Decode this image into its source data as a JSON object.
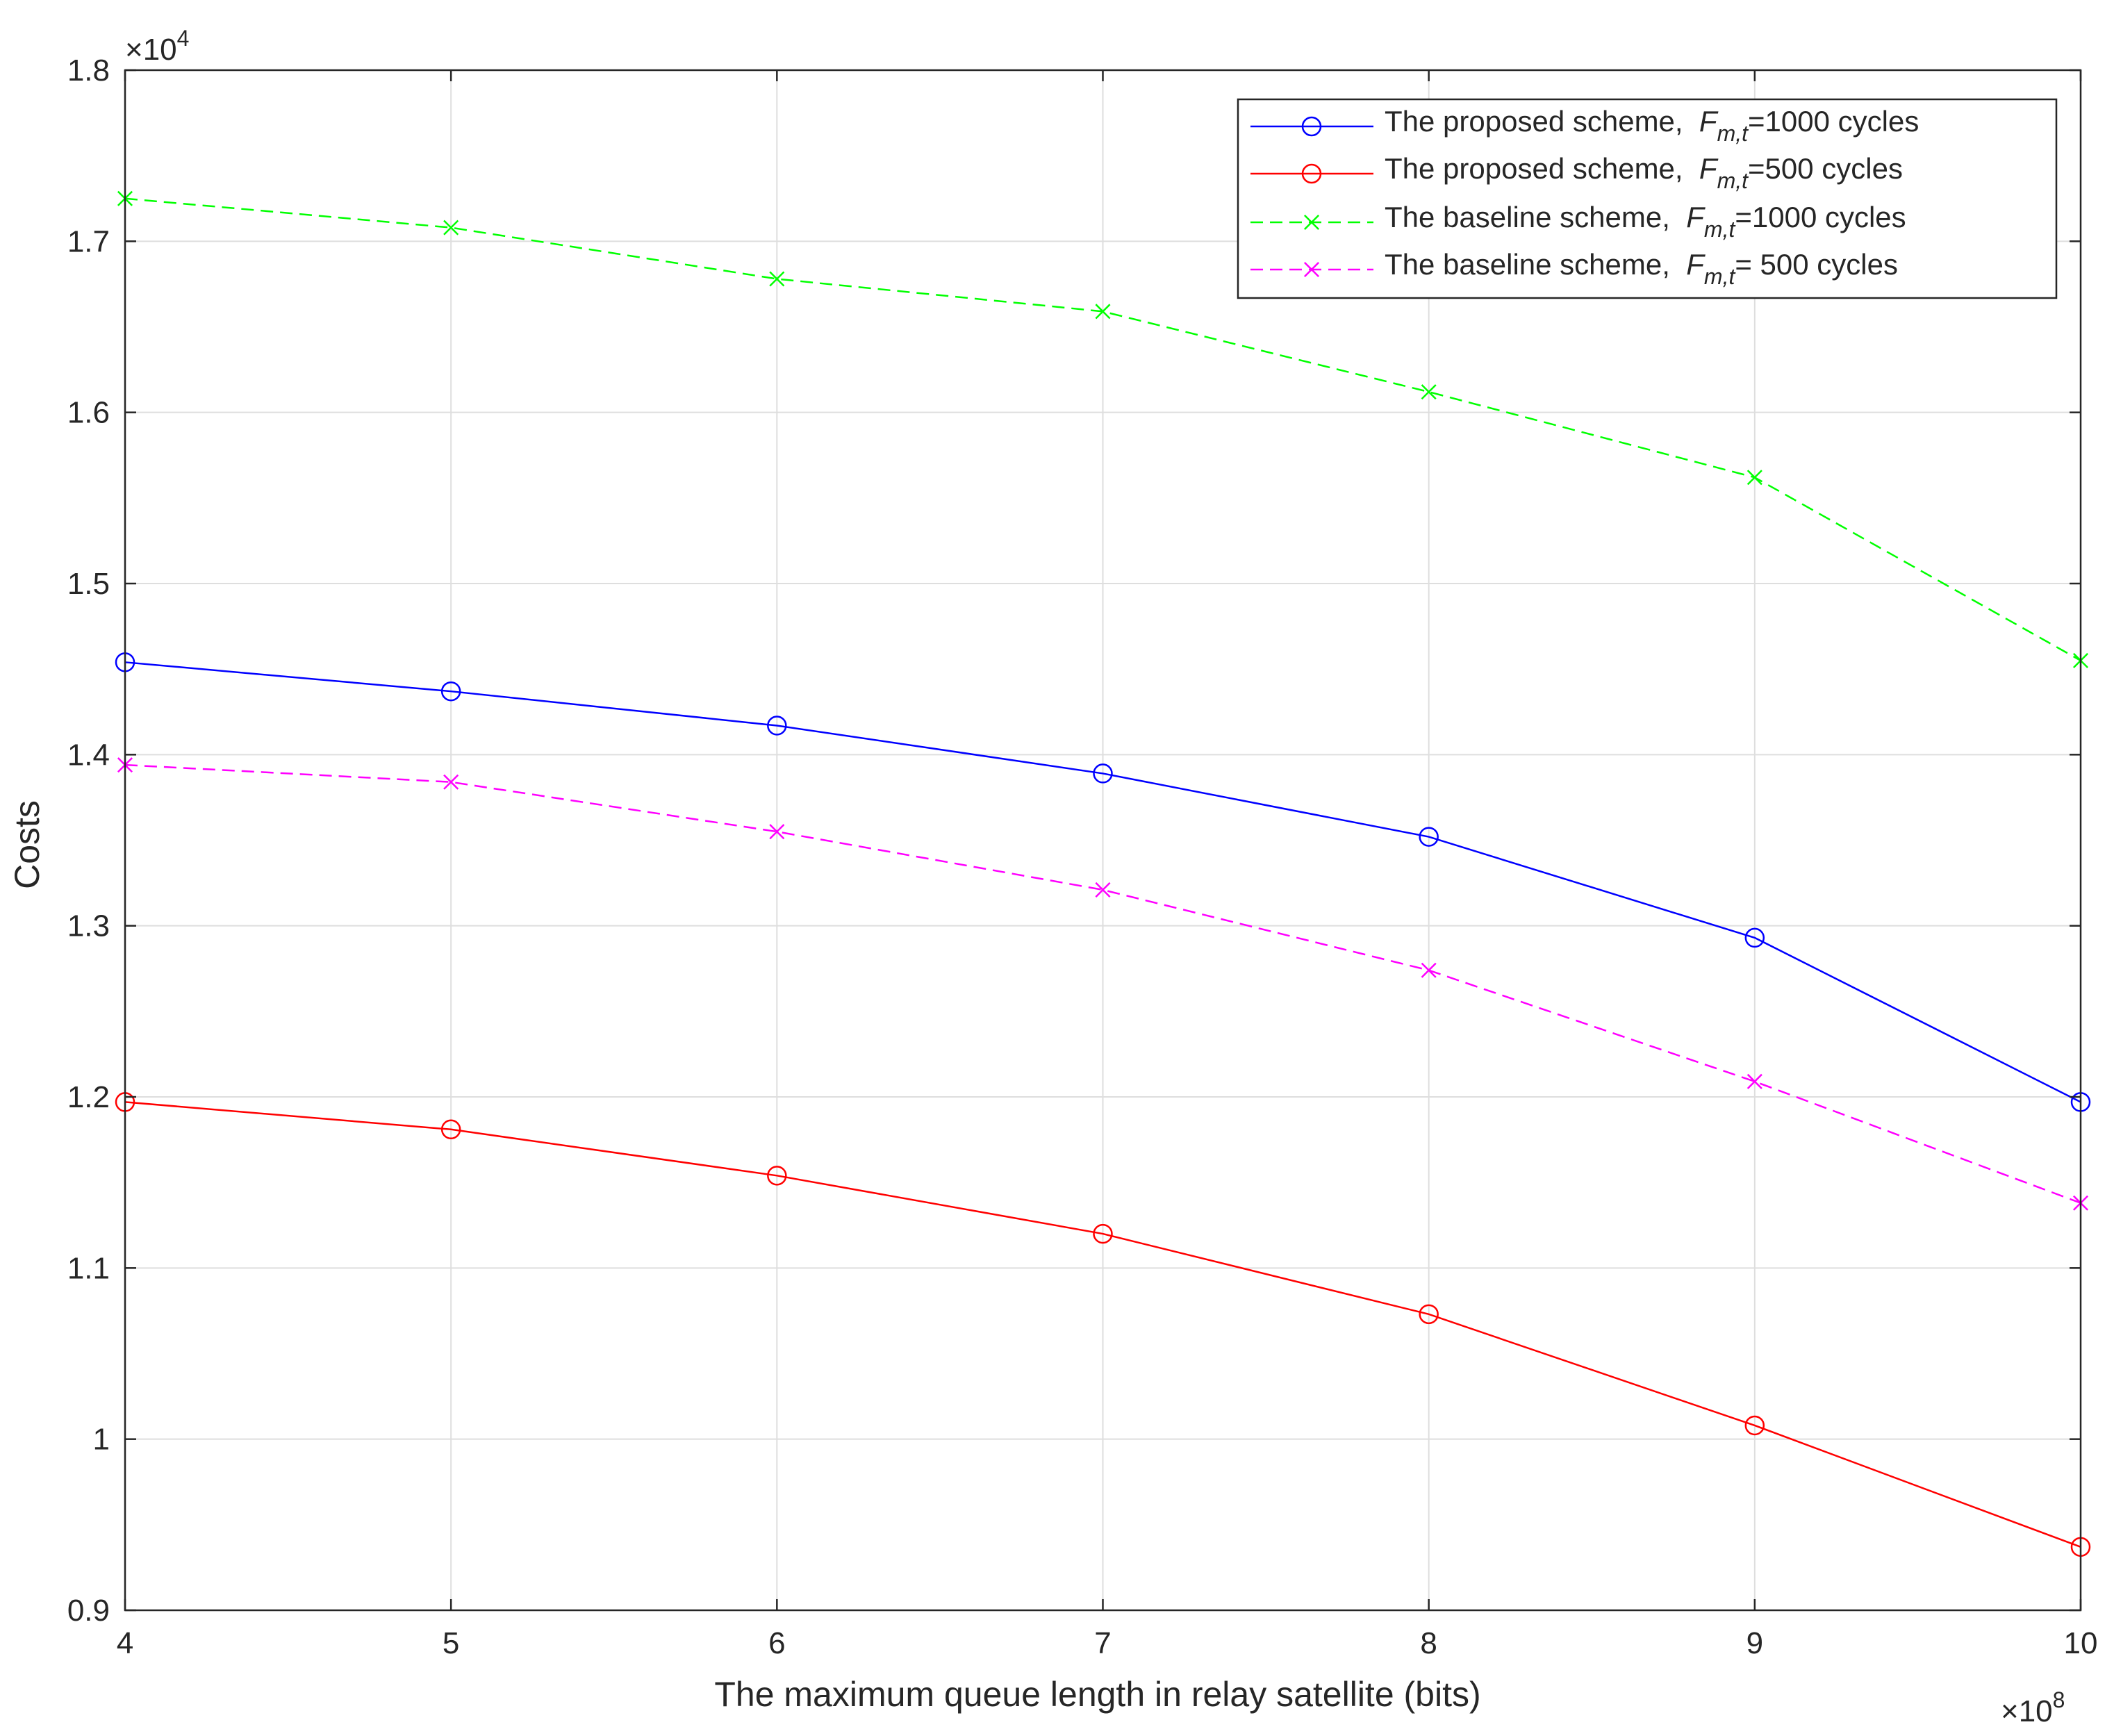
{
  "chart_data": {
    "type": "line",
    "title": "",
    "xlabel": "The maximum queue length in relay satellite (bits)",
    "ylabel": "Costs",
    "x_multiplier": {
      "base": "10",
      "exponent": "8"
    },
    "y_multiplier": {
      "base": "10",
      "exponent": "4"
    },
    "xlim": [
      4,
      10
    ],
    "ylim": [
      0.9,
      1.8
    ],
    "x_ticks": [
      "4",
      "5",
      "6",
      "7",
      "8",
      "9",
      "10"
    ],
    "y_ticks": [
      "0.9",
      "1",
      "1.1",
      "1.2",
      "1.3",
      "1.4",
      "1.5",
      "1.6",
      "1.7",
      "1.8"
    ],
    "grid": true,
    "legend_position": "top-right",
    "x": [
      4,
      5,
      6,
      7,
      8,
      9,
      10
    ],
    "series": [
      {
        "legend_prefix": "The proposed scheme,",
        "legend_sym": "F",
        "legend_sub": "m,t",
        "legend_suffix": "=1000 cycles",
        "color": "#0000ff",
        "line_style": "solid",
        "marker": "circle",
        "values": [
          1.454,
          1.437,
          1.417,
          1.389,
          1.352,
          1.293,
          1.197
        ]
      },
      {
        "legend_prefix": "The proposed scheme,",
        "legend_sym": "F",
        "legend_sub": "m,t",
        "legend_suffix": "=500 cycles",
        "color": "#ff0000",
        "line_style": "solid",
        "marker": "circle",
        "values": [
          1.197,
          1.181,
          1.154,
          1.12,
          1.073,
          1.008,
          0.937
        ]
      },
      {
        "legend_prefix": "The baseline scheme,",
        "legend_sym": "F",
        "legend_sub": "m,t",
        "legend_suffix": "=1000 cycles",
        "color": "#00ff00",
        "line_style": "dashed",
        "marker": "x",
        "values": [
          1.725,
          1.708,
          1.678,
          1.659,
          1.612,
          1.562,
          1.455
        ]
      },
      {
        "legend_prefix": "The baseline scheme,",
        "legend_sym": "F",
        "legend_sub": "m,t",
        "legend_suffix": "= 500 cycles",
        "color": "#ff00ff",
        "line_style": "dashed",
        "marker": "x",
        "values": [
          1.394,
          1.384,
          1.355,
          1.321,
          1.274,
          1.209,
          1.138
        ]
      }
    ]
  }
}
